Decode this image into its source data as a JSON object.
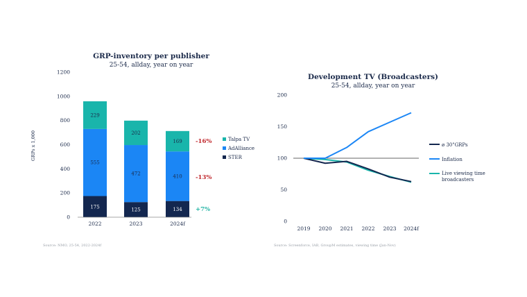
{
  "colors": {
    "navy": "#13274f",
    "blue": "#1b86f5",
    "teal": "#19b5ab",
    "red": "#c0262b",
    "green": "#27b6a6",
    "axis": "#7a7a7a",
    "gray_text": "#9aa0a8"
  },
  "chart_data": [
    {
      "type": "bar",
      "stacked": true,
      "title": "GRP-inventory per publisher",
      "subtitle": "25-54, allday, year on year",
      "ylabel": "GRPs x 1,000",
      "xlabel": "",
      "ylim": [
        0,
        1200
      ],
      "yticks": [
        "0",
        "200",
        "400",
        "600",
        "800",
        "1000",
        "1200"
      ],
      "categories": [
        "2022",
        "2023",
        "2024f"
      ],
      "series": [
        {
          "name": "STER",
          "values": [
            175,
            125,
            134
          ],
          "labels": [
            "175",
            "125",
            "134"
          ]
        },
        {
          "name": "AdAlliance",
          "values": [
            555,
            472,
            410
          ],
          "labels": [
            "555",
            "472",
            "410"
          ]
        },
        {
          "name": "Talpa TV",
          "values": [
            229,
            202,
            169
          ],
          "labels": [
            "229",
            "202",
            "169"
          ]
        }
      ],
      "legend": [
        "Talpa TV",
        "AdAlliance",
        "STER"
      ],
      "annotations": [
        "-16%",
        "-13%",
        "+7%"
      ],
      "source": "Source: NMO, 25-54, 2022-2024f"
    },
    {
      "type": "line",
      "title": "Development TV (Broadcasters)",
      "subtitle": "25-54, allday, year on year",
      "x": [
        "2019",
        "2020",
        "2021",
        "2022",
        "2023",
        "2024f"
      ],
      "ylim": [
        0,
        200
      ],
      "yticks": [
        "0",
        "50",
        "100",
        "150",
        "200"
      ],
      "series": [
        {
          "name": "Inflation",
          "values": [
            100,
            100,
            117,
            142,
            157,
            172
          ]
        },
        {
          "name": "ø 30\"GRPs",
          "values": [
            100,
            92,
            95,
            83,
            70,
            63
          ]
        },
        {
          "name": "Live viewing time broadcasters",
          "values": [
            100,
            98,
            94,
            81,
            71,
            62
          ]
        }
      ],
      "legend": [
        "ø 30\"GRPs",
        "Inflation",
        "Live viewing time broadcasters"
      ],
      "reference_line": 100,
      "source": "Source: Screenforce, IAB, GroupM estimates, viewing time (Jan-Nov)"
    }
  ]
}
